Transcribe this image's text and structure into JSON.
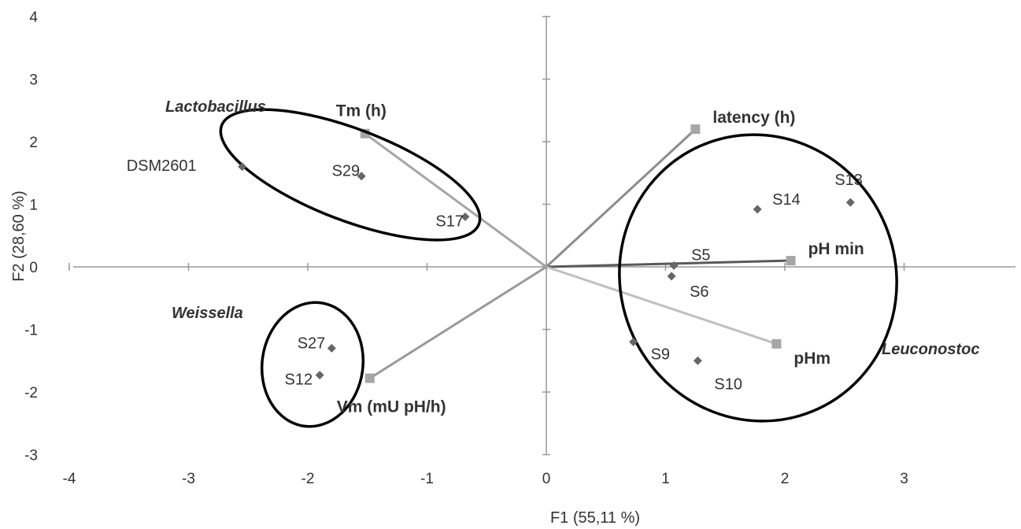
{
  "chart_data": {
    "type": "scatter",
    "title": "",
    "xlabel": "F1 (55,11 %)",
    "ylabel": "F2 (28,60 %)",
    "xlim": [
      -4,
      4
    ],
    "ylim": [
      -3,
      4
    ],
    "x_ticks": [
      -4,
      -3,
      -2,
      -1,
      0,
      1,
      2,
      3
    ],
    "y_ticks": [
      -3,
      -2,
      -1,
      0,
      1,
      2,
      3,
      4
    ],
    "grid": false,
    "observations": [
      {
        "label": "DSM2601",
        "x": -2.55,
        "y": 1.6
      },
      {
        "label": "S29",
        "x": -1.55,
        "y": 1.45
      },
      {
        "label": "S17",
        "x": -0.68,
        "y": 0.8
      },
      {
        "label": "S27",
        "x": -1.8,
        "y": -1.3
      },
      {
        "label": "S12",
        "x": -1.9,
        "y": -1.73
      },
      {
        "label": "S14",
        "x": 1.77,
        "y": 0.92
      },
      {
        "label": "S13",
        "x": 2.55,
        "y": 1.03
      },
      {
        "label": "S5",
        "x": 1.07,
        "y": 0.02
      },
      {
        "label": "S6",
        "x": 1.05,
        "y": -0.15
      },
      {
        "label": "S9",
        "x": 0.73,
        "y": -1.2
      },
      {
        "label": "S10",
        "x": 1.27,
        "y": -1.5
      }
    ],
    "variables": [
      {
        "label": "Tm (h)",
        "x": -1.52,
        "y": 2.13,
        "color": "#a6a6a6"
      },
      {
        "label": "latency (h)",
        "x": 1.25,
        "y": 2.2,
        "color": "#8c8c8c"
      },
      {
        "label": "pH min",
        "x": 2.05,
        "y": 0.1,
        "color": "#595959"
      },
      {
        "label": "pHm",
        "x": 1.93,
        "y": -1.23,
        "color": "#bfbfbf"
      },
      {
        "label": "Vm (mU pH/h)",
        "x": -1.48,
        "y": -1.78,
        "color": "#999999"
      }
    ],
    "groups": [
      {
        "label": "Lactobacillus"
      },
      {
        "label": "Weissella"
      },
      {
        "label": "Leuconostoc"
      }
    ],
    "colors": {
      "observation_marker": "#666666",
      "variable_marker": "#a6a6a6",
      "axis": "#999999",
      "ellipse": "#000000"
    }
  }
}
